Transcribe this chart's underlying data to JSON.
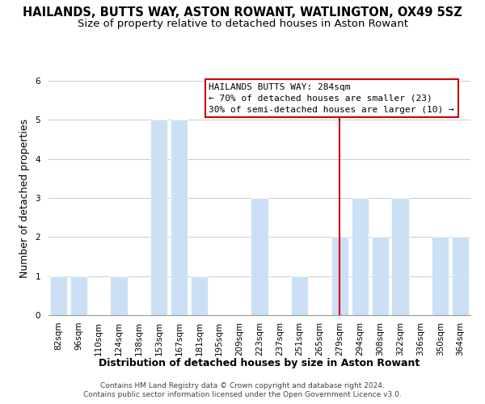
{
  "title": "HAILANDS, BUTTS WAY, ASTON ROWANT, WATLINGTON, OX49 5SZ",
  "subtitle": "Size of property relative to detached houses in Aston Rowant",
  "xlabel": "Distribution of detached houses by size in Aston Rowant",
  "ylabel": "Number of detached properties",
  "footnote1": "Contains HM Land Registry data © Crown copyright and database right 2024.",
  "footnote2": "Contains public sector information licensed under the Open Government Licence v3.0.",
  "xlabels": [
    "82sqm",
    "96sqm",
    "110sqm",
    "124sqm",
    "138sqm",
    "153sqm",
    "167sqm",
    "181sqm",
    "195sqm",
    "209sqm",
    "223sqm",
    "237sqm",
    "251sqm",
    "265sqm",
    "279sqm",
    "294sqm",
    "308sqm",
    "322sqm",
    "336sqm",
    "350sqm",
    "364sqm"
  ],
  "bar_heights": [
    1,
    1,
    0,
    1,
    0,
    5,
    5,
    1,
    0,
    0,
    3,
    0,
    1,
    0,
    2,
    3,
    2,
    3,
    0,
    2,
    2
  ],
  "bar_color": "#cce0f5",
  "bar_edge_color": "#ffffff",
  "grid_color": "#cccccc",
  "vline_x_index": 14,
  "vline_color": "#cc0000",
  "annotation_title": "HAILANDS BUTTS WAY: 284sqm",
  "annotation_line1": "← 70% of detached houses are smaller (23)",
  "annotation_line2": "30% of semi-detached houses are larger (10) →",
  "annotation_box_color": "#cc0000",
  "ylim": [
    0,
    6
  ],
  "yticks": [
    0,
    1,
    2,
    3,
    4,
    5,
    6
  ],
  "background_color": "#ffffff",
  "title_fontsize": 10.5,
  "subtitle_fontsize": 9.5,
  "axis_label_fontsize": 9,
  "tick_fontsize": 7.5,
  "annotation_fontsize": 8,
  "footnote_fontsize": 6.5
}
